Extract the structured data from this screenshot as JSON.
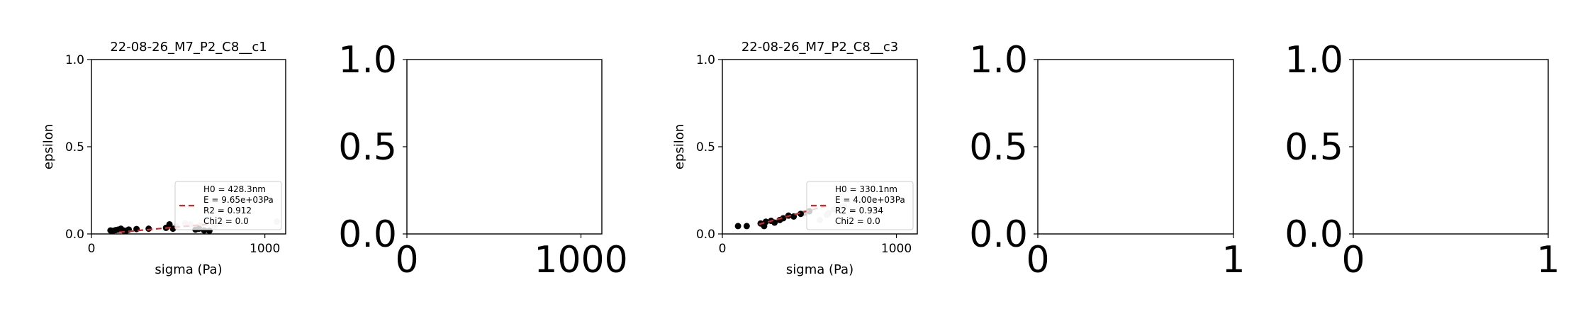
{
  "colors": {
    "frame": "#000000",
    "black_points": "#000000",
    "grey_points": "#d3d3d3",
    "fit_line": "#d62728",
    "legend_edge": "#cccccc"
  },
  "chart_data": [
    {
      "type": "scatter",
      "title": "22-08-26_M7_P2_C8__c1",
      "xlabel": "sigma (Pa)",
      "ylabel": "epsilon",
      "xlim": [
        0,
        1120
      ],
      "ylim": [
        0,
        1.0
      ],
      "xticks": [
        0,
        1000
      ],
      "xtick_labels": [
        "0",
        "1000"
      ],
      "yticks": [
        0.0,
        0.5,
        1.0
      ],
      "ytick_labels": [
        "0.0",
        "0.5",
        "1.0"
      ],
      "tick_font": "small",
      "black_points": {
        "x": [
          110,
          125,
          140,
          155,
          170,
          185,
          200,
          215,
          260,
          330,
          430,
          450,
          470,
          600,
          620,
          650,
          680
        ],
        "y": [
          0.02,
          0.018,
          0.022,
          0.025,
          0.03,
          0.02,
          0.018,
          0.025,
          0.028,
          0.03,
          0.035,
          0.055,
          0.03,
          0.025,
          0.03,
          0.02,
          0.018
        ]
      },
      "grey_points": {
        "x": [
          490,
          540,
          570,
          630,
          710,
          750,
          1070
        ],
        "y": [
          0.045,
          0.06,
          0.055,
          0.05,
          0.045,
          0.06,
          0.07
        ]
      },
      "fit_line": {
        "x": [
          160,
          700
        ],
        "y": [
          0.01,
          0.058
        ]
      },
      "legend": {
        "position": "lower-right",
        "lines": [
          "H0 = 428.3nm",
          "E = 9.65e+03Pa",
          "R2 = 0.912",
          "Chi2 = 0.0"
        ]
      }
    },
    {
      "type": "scatter",
      "title": "",
      "xlabel": "",
      "ylabel": "",
      "xlim": [
        0,
        1120
      ],
      "ylim": [
        0,
        1.0
      ],
      "xticks": [
        0,
        1000
      ],
      "xtick_labels": [
        "0",
        "1000"
      ],
      "yticks": [
        0.0,
        0.5,
        1.0
      ],
      "ytick_labels": [
        "0.0",
        "0.5",
        "1.0"
      ],
      "tick_font": "large"
    },
    {
      "type": "scatter",
      "title": "22-08-26_M7_P2_C8__c3",
      "xlabel": "sigma (Pa)",
      "ylabel": "epsilon",
      "xlim": [
        0,
        1120
      ],
      "ylim": [
        0,
        1.0
      ],
      "xticks": [
        0,
        1000
      ],
      "xtick_labels": [
        "0",
        "1000"
      ],
      "yticks": [
        0.0,
        0.5,
        1.0
      ],
      "ytick_labels": [
        "0.0",
        "0.5",
        "1.0"
      ],
      "tick_font": "small",
      "black_points": {
        "x": [
          90,
          140,
          220,
          240,
          250,
          280,
          300,
          330,
          350,
          380,
          410,
          450,
          500
        ],
        "y": [
          0.045,
          0.045,
          0.06,
          0.045,
          0.07,
          0.075,
          0.065,
          0.08,
          0.09,
          0.105,
          0.1,
          0.115,
          0.13
        ]
      },
      "grey_points": {
        "x": [
          470,
          560,
          600,
          610,
          640,
          680,
          700
        ],
        "y": [
          0.12,
          0.08,
          0.11,
          0.12,
          0.14,
          0.15,
          0.16
        ]
      },
      "fit_line": {
        "x": [
          210,
          610
        ],
        "y": [
          0.055,
          0.165
        ]
      },
      "legend": {
        "position": "lower-right",
        "lines": [
          "H0 = 330.1nm",
          "E = 4.00e+03Pa",
          "R2 = 0.934",
          "Chi2 = 0.0"
        ]
      }
    },
    {
      "type": "scatter",
      "title": "",
      "xlabel": "",
      "ylabel": "",
      "xlim": [
        0,
        1
      ],
      "ylim": [
        0,
        1.0
      ],
      "xticks": [
        0,
        1
      ],
      "xtick_labels": [
        "0",
        "1"
      ],
      "yticks": [
        0.0,
        0.5,
        1.0
      ],
      "ytick_labels": [
        "0.0",
        "0.5",
        "1.0"
      ],
      "tick_font": "large"
    },
    {
      "type": "scatter",
      "title": "",
      "xlabel": "",
      "ylabel": "",
      "xlim": [
        0,
        1
      ],
      "ylim": [
        0,
        1.0
      ],
      "xticks": [
        0,
        1
      ],
      "xtick_labels": [
        "0",
        "1"
      ],
      "yticks": [
        0.0,
        0.5,
        1.0
      ],
      "ytick_labels": [
        "0.0",
        "0.5",
        "1.0"
      ],
      "tick_font": "large"
    }
  ]
}
